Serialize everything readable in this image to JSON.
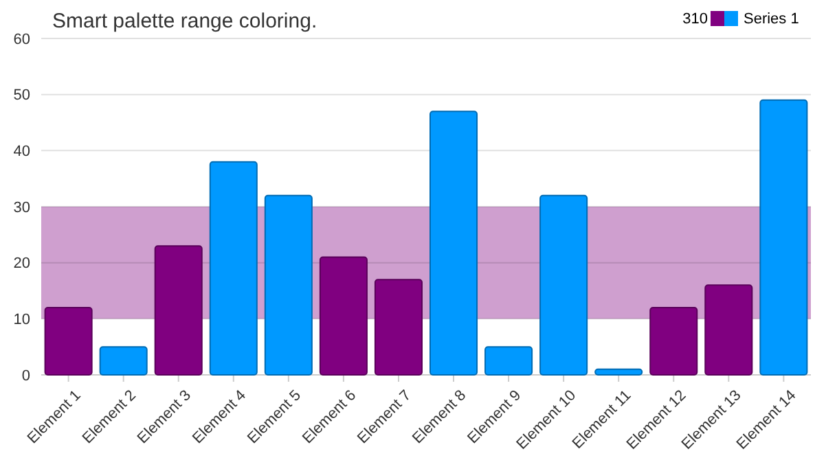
{
  "chart_data": {
    "type": "bar",
    "title": "Smart palette range coloring.",
    "legend_title": "310",
    "legend": "top right",
    "grid": "y",
    "categories": [
      "Element 1",
      "Element 2",
      "Element 3",
      "Element 4",
      "Element 5",
      "Element 6",
      "Element 7",
      "Element 8",
      "Element 9",
      "Element 10",
      "Element 11",
      "Element 12",
      "Element 13",
      "Element 14"
    ],
    "series": [
      {
        "name": "Series 1",
        "values": [
          12,
          5,
          23,
          38,
          32,
          21,
          17,
          47,
          5,
          32,
          1,
          12,
          16,
          49
        ],
        "colors": [
          "#800080",
          "#0099ff",
          "#800080",
          "#0099ff",
          "#0099ff",
          "#800080",
          "#800080",
          "#0099ff",
          "#0099ff",
          "#0099ff",
          "#0099ff",
          "#800080",
          "#800080",
          "#0099ff"
        ]
      }
    ],
    "ylim": [
      0,
      60
    ],
    "yticks": [
      0,
      10,
      20,
      30,
      40,
      50,
      60
    ],
    "bands": [
      {
        "axis": "y",
        "from": 10,
        "to": 30,
        "color": "#cf9fcf"
      }
    ]
  }
}
